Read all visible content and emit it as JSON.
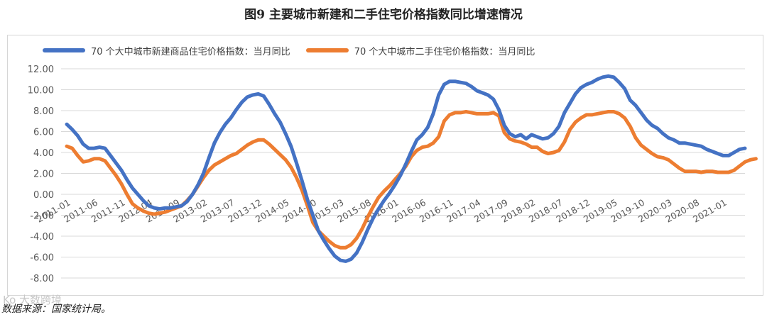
{
  "title": "图9 主要城市新建和二手住宅价格指数同比增速情况",
  "source": "数据来源：国家统计局。",
  "watermark": "Ko 大数跨境",
  "colors": {
    "new_home": "#4472C4",
    "second_hand": "#ED7D31",
    "grid": "#D9D9D9",
    "text": "#595959"
  },
  "chart_data": {
    "type": "line",
    "ylim": [
      -8,
      12
    ],
    "yticks": [
      "12.00",
      "10.00",
      "8.00",
      "6.00",
      "4.00",
      "2.00",
      "0.00",
      "-2.00",
      "-4.00",
      "-6.00",
      "-8.00"
    ],
    "ytick_values": [
      12,
      10,
      8,
      6,
      4,
      2,
      0,
      -2,
      -4,
      -6,
      -8
    ],
    "x_range": [
      "2011-01",
      "2021-07"
    ],
    "xticks": [
      "2011-01",
      "2011-06",
      "2011-11",
      "2012-04",
      "2012-09",
      "2013-02",
      "2013-07",
      "2013-12",
      "2014-05",
      "2014-10",
      "2015-03",
      "2015-08",
      "2016-01",
      "2016-06",
      "2016-11",
      "2017-04",
      "2017-09",
      "2018-02",
      "2018-07",
      "2018-12",
      "2019-05",
      "2019-10",
      "2020-03",
      "2020-08",
      "2021-01"
    ],
    "grid": true,
    "legend_position": "top",
    "series": [
      {
        "name": "70 个大中城市新建商品住宅价格指数：当月同比",
        "color": "#4472C4",
        "values": [
          6.7,
          6.2,
          5.6,
          4.8,
          4.4,
          4.4,
          4.5,
          4.4,
          3.7,
          3.0,
          2.3,
          1.4,
          0.6,
          0.0,
          -0.6,
          -1.1,
          -1.3,
          -1.4,
          -1.3,
          -1.3,
          -1.2,
          -1.1,
          -0.7,
          0.0,
          0.9,
          2.0,
          3.5,
          4.9,
          5.9,
          6.7,
          7.3,
          8.1,
          8.8,
          9.3,
          9.5,
          9.6,
          9.4,
          8.6,
          7.7,
          6.9,
          5.8,
          4.6,
          3.0,
          1.3,
          -0.5,
          -2.0,
          -3.5,
          -4.4,
          -5.2,
          -5.9,
          -6.3,
          -6.4,
          -6.2,
          -5.6,
          -4.6,
          -3.4,
          -2.3,
          -1.4,
          -0.6,
          0.1,
          0.9,
          1.8,
          2.9,
          4.1,
          5.2,
          5.7,
          6.4,
          7.7,
          9.5,
          10.5,
          10.8,
          10.8,
          10.7,
          10.6,
          10.3,
          9.9,
          9.7,
          9.5,
          9.1,
          8.1,
          6.6,
          5.8,
          5.5,
          5.7,
          5.3,
          5.7,
          5.5,
          5.3,
          5.4,
          5.8,
          6.5,
          7.8,
          8.7,
          9.6,
          10.2,
          10.5,
          10.7,
          11.0,
          11.2,
          11.3,
          11.2,
          10.7,
          10.1,
          9.0,
          8.5,
          7.8,
          7.1,
          6.6,
          6.3,
          5.8,
          5.4,
          5.2,
          4.9,
          4.9,
          4.8,
          4.7,
          4.6,
          4.3,
          4.1,
          3.9,
          3.7,
          3.7,
          4.0,
          4.3,
          4.4
        ]
      },
      {
        "name": "70 个大中城市二手住宅价格指数：当月同比",
        "color": "#ED7D31",
        "values": [
          4.6,
          4.4,
          3.7,
          3.1,
          3.2,
          3.4,
          3.4,
          3.2,
          2.5,
          1.8,
          1.0,
          0.0,
          -0.9,
          -1.3,
          -1.6,
          -1.8,
          -1.9,
          -1.8,
          -1.7,
          -1.5,
          -1.3,
          -1.1,
          -0.6,
          0.0,
          0.8,
          1.6,
          2.3,
          2.8,
          3.1,
          3.4,
          3.7,
          3.9,
          4.3,
          4.7,
          5.0,
          5.2,
          5.2,
          4.8,
          4.3,
          3.8,
          3.3,
          2.6,
          1.6,
          0.4,
          -1.1,
          -2.7,
          -3.5,
          -4.0,
          -4.5,
          -4.9,
          -5.1,
          -5.1,
          -4.8,
          -4.2,
          -3.3,
          -2.2,
          -1.2,
          -0.3,
          0.3,
          0.8,
          1.4,
          2.0,
          2.7,
          3.6,
          4.2,
          4.5,
          4.6,
          4.9,
          5.5,
          7.0,
          7.6,
          7.8,
          7.8,
          7.9,
          7.8,
          7.7,
          7.7,
          7.7,
          7.8,
          7.5,
          5.9,
          5.3,
          5.1,
          5.0,
          4.8,
          4.5,
          4.5,
          4.1,
          3.9,
          4.0,
          4.2,
          5.0,
          6.2,
          6.9,
          7.3,
          7.6,
          7.6,
          7.7,
          7.8,
          7.9,
          7.9,
          7.7,
          7.3,
          6.5,
          5.4,
          4.7,
          4.3,
          3.9,
          3.6,
          3.5,
          3.3,
          2.9,
          2.5,
          2.2,
          2.2,
          2.2,
          2.1,
          2.2,
          2.2,
          2.1,
          2.1,
          2.1,
          2.3,
          2.7,
          3.1,
          3.3,
          3.4
        ]
      }
    ]
  }
}
